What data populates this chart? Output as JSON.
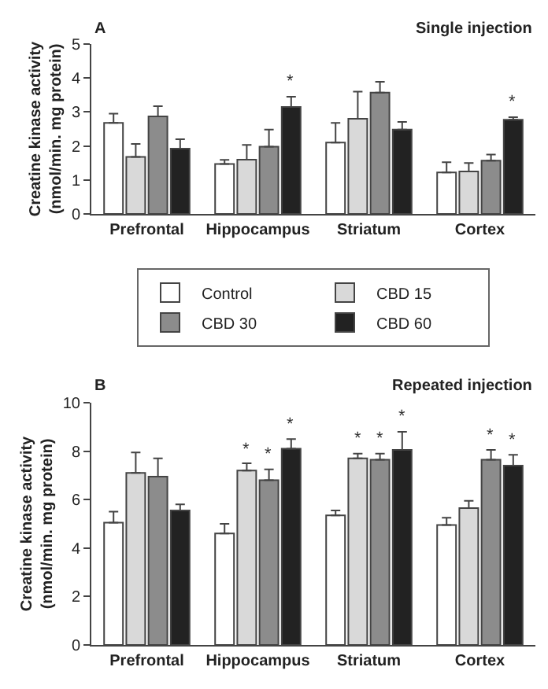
{
  "chart_data": [
    {
      "type": "bar",
      "title": "A",
      "subtitle": "Single injection",
      "ylabel": "Creatine kinase activity\n(nmol/min. mg protein)",
      "categories": [
        "Prefrontal",
        "Hippocampus",
        "Striatum",
        "Cortex"
      ],
      "ylim": [
        0,
        5
      ],
      "yticks": [
        0,
        1,
        2,
        3,
        4,
        5
      ],
      "grid": false,
      "legend": "bottom",
      "series": [
        {
          "name": "Control",
          "color": "#ffffff",
          "values": [
            2.68,
            1.47,
            2.1,
            1.22
          ],
          "errors": [
            [
              2.68,
              2.95
            ],
            [
              1.47,
              1.59
            ],
            [
              2.1,
              2.68
            ],
            [
              1.22,
              1.52
            ]
          ],
          "value_labels": [
            null,
            null,
            null,
            null
          ]
        },
        {
          "name": "CBD 15",
          "color": "#d9d9d9",
          "values": [
            1.68,
            1.6,
            2.8,
            1.25
          ],
          "errors": [
            [
              1.68,
              2.06
            ],
            [
              1.6,
              2.03
            ],
            [
              2.8,
              3.6
            ],
            [
              1.25,
              1.5
            ]
          ],
          "value_labels": [
            null,
            null,
            null,
            null
          ]
        },
        {
          "name": "CBD 30",
          "color": "#8c8c8c",
          "values": [
            2.87,
            1.98,
            3.57,
            1.57
          ],
          "errors": [
            [
              2.87,
              3.17
            ],
            [
              1.98,
              2.48
            ],
            [
              3.57,
              3.89
            ],
            [
              1.57,
              1.75
            ]
          ],
          "value_labels": [
            null,
            null,
            null,
            null
          ]
        },
        {
          "name": "CBD 60",
          "color": "#222222",
          "values": [
            1.92,
            3.15,
            2.48,
            2.77
          ],
          "errors": [
            [
              1.92,
              2.2
            ],
            [
              3.15,
              3.45
            ],
            [
              2.48,
              2.71
            ],
            [
              2.77,
              2.85
            ]
          ],
          "value_labels": [
            null,
            "*",
            null,
            "*"
          ]
        }
      ]
    },
    {
      "type": "bar",
      "title": "B",
      "subtitle": "Repeated injection",
      "ylabel": "Creatine kinase activity\n(nmol/min. mg protein)",
      "categories": [
        "Prefrontal",
        "Hippocampus",
        "Striatum",
        "Cortex"
      ],
      "ylim": [
        0,
        10
      ],
      "yticks": [
        0,
        2,
        4,
        6,
        8,
        10
      ],
      "grid": false,
      "legend": false,
      "series": [
        {
          "color": "#ffffff",
          "values": [
            5.05,
            4.6,
            5.35,
            4.95
          ],
          "errors": [
            [
              5.05,
              5.5
            ],
            [
              4.6,
              5.0
            ],
            [
              5.35,
              5.55
            ],
            [
              4.95,
              5.25
            ]
          ],
          "value_labels": [
            null,
            null,
            null,
            null
          ]
        },
        {
          "color": "#d9d9d9",
          "values": [
            7.1,
            7.2,
            7.7,
            5.65
          ],
          "errors": [
            [
              7.1,
              7.95
            ],
            [
              7.2,
              7.5
            ],
            [
              7.7,
              7.9
            ],
            [
              5.65,
              5.95
            ]
          ],
          "value_labels": [
            null,
            "*",
            "*",
            null
          ]
        },
        {
          "color": "#8c8c8c",
          "values": [
            6.95,
            6.8,
            7.65,
            7.65
          ],
          "errors": [
            [
              6.95,
              7.7
            ],
            [
              6.8,
              7.25
            ],
            [
              7.65,
              7.9
            ],
            [
              7.65,
              8.05
            ]
          ],
          "value_labels": [
            null,
            "*",
            "*",
            "*"
          ]
        },
        {
          "color": "#222222",
          "values": [
            5.55,
            8.1,
            8.05,
            7.4
          ],
          "errors": [
            [
              5.55,
              5.8
            ],
            [
              8.1,
              8.5
            ],
            [
              8.05,
              8.8
            ],
            [
              7.4,
              7.85
            ]
          ],
          "value_labels": [
            null,
            "*",
            "*",
            "*"
          ]
        }
      ]
    }
  ]
}
